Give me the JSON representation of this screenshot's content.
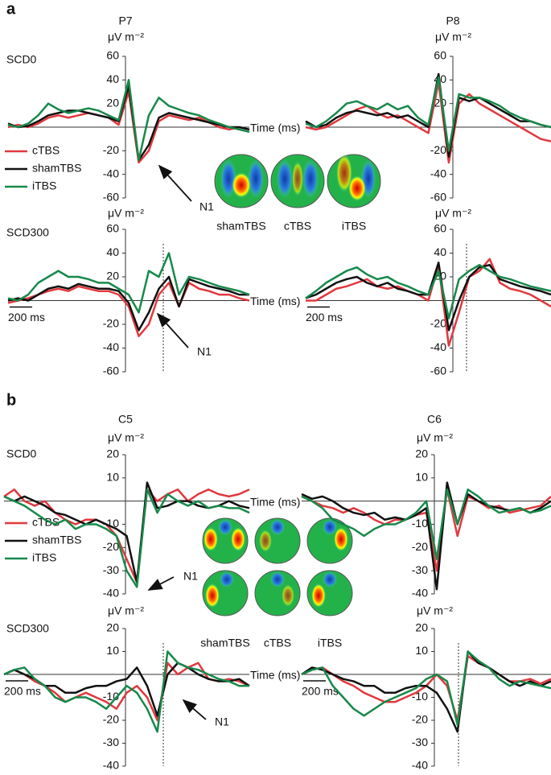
{
  "figure": {
    "panels": [
      "a",
      "b"
    ],
    "topomap_labels": [
      [
        "shamTBS",
        "cTBS",
        "iTBS"
      ],
      [
        "shamTBS",
        "cTBS",
        "iTBS"
      ]
    ]
  },
  "chart_data": [
    {
      "type": "line",
      "title": "P7",
      "y_label": "μV m⁻²",
      "row_label": "SCD0",
      "x_label": "Time (ms)",
      "annotation": "N1",
      "ylim": [
        -60,
        60
      ],
      "yticks": [
        -60,
        -40,
        -20,
        20,
        40,
        60
      ],
      "series": [
        {
          "name": "cTBS",
          "color": "#e0393e",
          "values": [
            0,
            2,
            0,
            3,
            8,
            10,
            8,
            10,
            12,
            10,
            8,
            2,
            30,
            -30,
            -20,
            5,
            10,
            8,
            6,
            8,
            4,
            0,
            -2,
            0,
            -2
          ]
        },
        {
          "name": "shamTBS",
          "color": "#111111",
          "values": [
            3,
            0,
            1,
            5,
            10,
            12,
            14,
            14,
            12,
            10,
            8,
            5,
            35,
            -28,
            -15,
            8,
            12,
            10,
            8,
            6,
            4,
            2,
            0,
            0,
            -2
          ]
        },
        {
          "name": "iTBS",
          "color": "#17894a",
          "values": [
            2,
            0,
            3,
            10,
            20,
            15,
            12,
            14,
            16,
            14,
            10,
            6,
            40,
            -28,
            10,
            25,
            18,
            15,
            12,
            10,
            6,
            3,
            0,
            -2,
            -4
          ]
        }
      ]
    },
    {
      "type": "line",
      "title": "P8",
      "y_label": "μV m⁻²",
      "ylim": [
        -60,
        60
      ],
      "yticks": [
        -60,
        -40,
        -20,
        20,
        40,
        60
      ],
      "series": [
        {
          "name": "cTBS",
          "color": "#e0393e",
          "values": [
            0,
            -2,
            0,
            5,
            10,
            15,
            18,
            12,
            8,
            10,
            5,
            0,
            -5,
            38,
            -30,
            20,
            28,
            20,
            15,
            10,
            5,
            0,
            -5,
            -10,
            -12
          ]
        },
        {
          "name": "shamTBS",
          "color": "#111111",
          "values": [
            5,
            0,
            2,
            8,
            12,
            14,
            12,
            10,
            12,
            8,
            10,
            5,
            0,
            45,
            -25,
            25,
            22,
            25,
            20,
            15,
            10,
            5,
            5,
            2,
            0
          ]
        },
        {
          "name": "iTBS",
          "color": "#17894a",
          "values": [
            3,
            0,
            5,
            12,
            20,
            22,
            18,
            15,
            20,
            15,
            18,
            8,
            2,
            42,
            -20,
            28,
            25,
            25,
            22,
            18,
            12,
            8,
            5,
            2,
            0
          ]
        }
      ]
    },
    {
      "type": "line",
      "y_label": "μV m⁻²",
      "row_label": "SCD300",
      "x_label": "Time (ms)",
      "annotation": "N1",
      "scale_bar": "200 ms",
      "ylim": [
        -60,
        60
      ],
      "yticks": [
        -60,
        -40,
        -20,
        20,
        40,
        60
      ],
      "series": [
        {
          "name": "cTBS",
          "color": "#e0393e",
          "values": [
            -2,
            0,
            2,
            5,
            8,
            10,
            8,
            12,
            10,
            8,
            8,
            5,
            -5,
            -30,
            -20,
            5,
            15,
            -5,
            15,
            10,
            8,
            5,
            5,
            2,
            0
          ]
        },
        {
          "name": "shamTBS",
          "color": "#111111",
          "values": [
            0,
            2,
            0,
            5,
            10,
            12,
            10,
            14,
            12,
            10,
            10,
            8,
            -2,
            -25,
            -10,
            10,
            20,
            -5,
            18,
            15,
            12,
            10,
            8,
            5,
            5
          ]
        },
        {
          "name": "iTBS",
          "color": "#17894a",
          "values": [
            2,
            0,
            5,
            15,
            20,
            25,
            20,
            20,
            18,
            15,
            15,
            10,
            5,
            -10,
            25,
            20,
            40,
            5,
            20,
            18,
            15,
            12,
            10,
            8,
            5
          ]
        }
      ]
    },
    {
      "type": "line",
      "y_label": "μV m⁻²",
      "scale_bar": "200 ms",
      "ylim": [
        -60,
        60
      ],
      "yticks": [
        -60,
        -40,
        -20,
        20,
        40,
        60
      ],
      "series": [
        {
          "name": "cTBS",
          "color": "#e0393e",
          "values": [
            0,
            0,
            5,
            10,
            12,
            15,
            18,
            12,
            10,
            12,
            8,
            5,
            0,
            30,
            -38,
            -10,
            20,
            25,
            35,
            15,
            10,
            8,
            5,
            0,
            -5
          ]
        },
        {
          "name": "shamTBS",
          "color": "#111111",
          "values": [
            2,
            5,
            10,
            15,
            18,
            20,
            15,
            12,
            15,
            10,
            8,
            5,
            5,
            32,
            -25,
            0,
            20,
            28,
            30,
            18,
            15,
            12,
            10,
            8,
            5
          ]
        },
        {
          "name": "iTBS",
          "color": "#17894a",
          "values": [
            2,
            8,
            15,
            20,
            25,
            28,
            22,
            18,
            20,
            15,
            12,
            8,
            5,
            25,
            -15,
            18,
            25,
            30,
            25,
            20,
            18,
            15,
            12,
            10,
            8
          ]
        }
      ]
    },
    {
      "type": "line",
      "title": "C5",
      "y_label": "μV m⁻²",
      "row_label": "SCD0",
      "x_label": "Time (ms)",
      "annotation": "N1",
      "ylim": [
        -40,
        20
      ],
      "yticks": [
        -40,
        -30,
        -20,
        -10,
        10,
        20
      ],
      "series": [
        {
          "name": "cTBS",
          "color": "#e0393e",
          "values": [
            2,
            5,
            0,
            -2,
            0,
            -5,
            -8,
            -10,
            -8,
            -8,
            -10,
            -15,
            -25,
            -35,
            5,
            0,
            3,
            5,
            0,
            3,
            5,
            3,
            2,
            3,
            5
          ]
        },
        {
          "name": "shamTBS",
          "color": "#111111",
          "values": [
            2,
            0,
            2,
            0,
            -2,
            -5,
            -6,
            -8,
            -10,
            -8,
            -10,
            -12,
            -15,
            -35,
            8,
            -3,
            -2,
            0,
            0,
            -2,
            -3,
            -2,
            0,
            -2,
            -3
          ]
        },
        {
          "name": "iTBS",
          "color": "#17894a",
          "values": [
            2,
            0,
            -2,
            -5,
            -8,
            -10,
            -8,
            -12,
            -10,
            -10,
            -12,
            -15,
            -30,
            -37,
            5,
            -5,
            3,
            0,
            -2,
            0,
            -3,
            -2,
            -3,
            -3,
            -5
          ]
        }
      ]
    },
    {
      "type": "line",
      "title": "C6",
      "y_label": "μV m⁻²",
      "ylim": [
        -40,
        20
      ],
      "yticks": [
        -40,
        -30,
        -20,
        -10,
        10,
        20
      ],
      "series": [
        {
          "name": "cTBS",
          "color": "#e0393e",
          "values": [
            2,
            0,
            -2,
            -3,
            -5,
            -3,
            -5,
            -8,
            -10,
            -8,
            -8,
            -6,
            -5,
            -30,
            5,
            -15,
            2,
            0,
            -3,
            -2,
            -5,
            -4,
            -3,
            -2,
            2
          ]
        },
        {
          "name": "shamTBS",
          "color": "#111111",
          "values": [
            3,
            1,
            2,
            0,
            -3,
            -5,
            -6,
            -5,
            -8,
            -7,
            -8,
            -6,
            -3,
            -38,
            8,
            -10,
            3,
            0,
            -2,
            -3,
            -4,
            -3,
            -5,
            -3,
            0
          ]
        },
        {
          "name": "iTBS",
          "color": "#17894a",
          "values": [
            2,
            0,
            -3,
            -8,
            -10,
            -12,
            -15,
            -12,
            -10,
            -10,
            -8,
            -5,
            0,
            -25,
            5,
            -10,
            5,
            2,
            -2,
            -5,
            -4,
            -3,
            -5,
            -4,
            -2
          ]
        }
      ]
    },
    {
      "type": "line",
      "y_label": "μV m⁻²",
      "row_label": "SCD300",
      "x_label": "Time (ms)",
      "annotation": "N1",
      "scale_bar": "200 ms",
      "ylim": [
        -40,
        20
      ],
      "yticks": [
        -40,
        -30,
        -20,
        -10,
        10,
        20
      ],
      "series": [
        {
          "name": "cTBS",
          "color": "#e0393e",
          "values": [
            0,
            2,
            0,
            -3,
            -5,
            -8,
            -12,
            -10,
            -8,
            -10,
            -12,
            -15,
            -8,
            -5,
            -10,
            -20,
            5,
            0,
            3,
            5,
            -2,
            -3,
            -2,
            -3,
            -5
          ]
        },
        {
          "name": "shamTBS",
          "color": "#111111",
          "values": [
            0,
            2,
            0,
            -2,
            -5,
            -5,
            -8,
            -8,
            -6,
            -5,
            -5,
            -3,
            -2,
            3,
            -5,
            -18,
            0,
            5,
            3,
            0,
            -2,
            -3,
            -3,
            -2,
            -5
          ]
        },
        {
          "name": "iTBS",
          "color": "#17894a",
          "values": [
            0,
            2,
            3,
            -2,
            -5,
            -10,
            -12,
            -10,
            -10,
            -12,
            -15,
            -10,
            -5,
            -8,
            -15,
            -25,
            10,
            5,
            3,
            2,
            0,
            -2,
            -3,
            -5,
            -5
          ]
        }
      ]
    },
    {
      "type": "line",
      "y_label": "μV m⁻²",
      "scale_bar": "200 ms",
      "ylim": [
        -40,
        20
      ],
      "yticks": [
        -40,
        -30,
        -20,
        -10,
        10,
        20
      ],
      "series": [
        {
          "name": "cTBS",
          "color": "#e0393e",
          "values": [
            0,
            2,
            3,
            0,
            -3,
            -5,
            -8,
            -10,
            -12,
            -12,
            -10,
            -8,
            -5,
            0,
            -5,
            -20,
            8,
            5,
            3,
            0,
            -3,
            -3,
            -2,
            -4,
            -2
          ]
        },
        {
          "name": "shamTBS",
          "color": "#111111",
          "values": [
            0,
            3,
            2,
            0,
            -2,
            -3,
            -5,
            -5,
            -8,
            -8,
            -6,
            -5,
            -5,
            -8,
            -15,
            -25,
            10,
            5,
            3,
            0,
            -3,
            -5,
            -3,
            -5,
            -3
          ]
        },
        {
          "name": "iTBS",
          "color": "#17894a",
          "values": [
            0,
            2,
            3,
            -5,
            -10,
            -15,
            -18,
            -15,
            -12,
            -10,
            -8,
            -6,
            -2,
            0,
            -3,
            -22,
            10,
            6,
            3,
            -2,
            -5,
            -3,
            -4,
            -5,
            -6
          ]
        }
      ]
    }
  ]
}
